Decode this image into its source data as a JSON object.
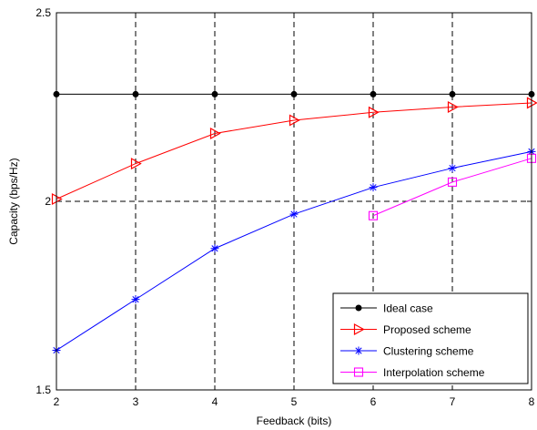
{
  "chart_data": {
    "type": "line",
    "title": "",
    "xlabel": "Feedback (bits)",
    "ylabel": "Capacity (bps/Hz)",
    "xlim": [
      2,
      8
    ],
    "ylim": [
      1.5,
      2.5
    ],
    "xticks": [
      "2",
      "3",
      "4",
      "5",
      "6",
      "7",
      "8"
    ],
    "yticks": [
      "1.5",
      "2",
      "2.5"
    ],
    "grid": "dashed major gridlines",
    "legend_position": "bottom-right",
    "series": [
      {
        "name": "Ideal case",
        "color": "#000000",
        "marker": "dot",
        "x": [
          2,
          3,
          4,
          5,
          6,
          7,
          8
        ],
        "y": [
          2.284,
          2.284,
          2.284,
          2.284,
          2.284,
          2.284,
          2.284
        ]
      },
      {
        "name": "Proposed scheme",
        "color": "#ff0000",
        "marker": "triangle-right",
        "x": [
          2,
          3,
          4,
          5,
          6,
          7,
          8
        ],
        "y": [
          2.006,
          2.1,
          2.18,
          2.215,
          2.236,
          2.25,
          2.261
        ]
      },
      {
        "name": "Clustering scheme",
        "color": "#0000ff",
        "marker": "asterisk",
        "x": [
          2,
          3,
          4,
          5,
          6,
          7,
          8
        ],
        "y": [
          1.605,
          1.74,
          1.875,
          1.966,
          2.037,
          2.088,
          2.132
        ]
      },
      {
        "name": "Interpolation scheme",
        "color": "#ff00ff",
        "marker": "square",
        "x": [
          6,
          7,
          8
        ],
        "y": [
          1.962,
          2.051,
          2.114
        ]
      }
    ]
  }
}
